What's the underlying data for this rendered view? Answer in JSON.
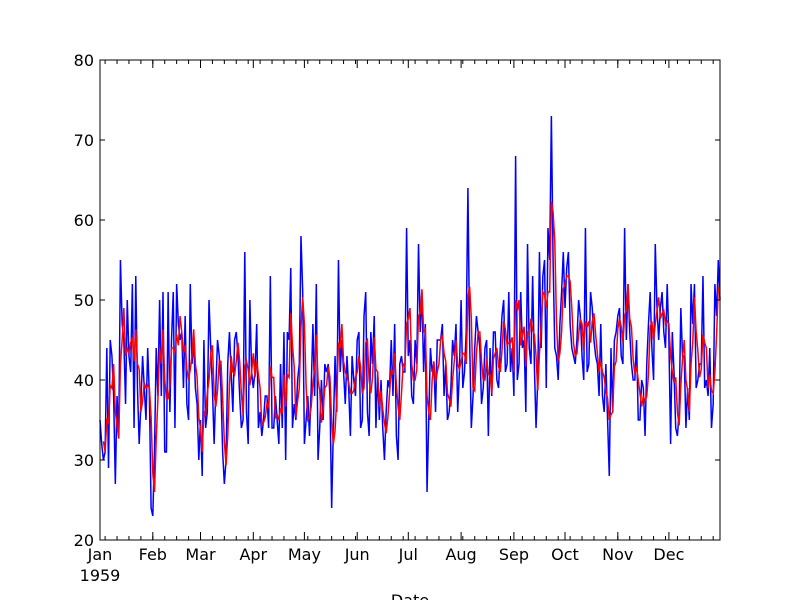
{
  "chart_data": {
    "type": "line",
    "title": "",
    "xlabel": "Date",
    "ylabel": "",
    "ylim": [
      20,
      80
    ],
    "yticks": [
      20,
      30,
      40,
      50,
      60,
      70,
      80
    ],
    "x_start": "1959-01-01",
    "x_end": "1959-12-31",
    "xticks": [
      "Jan",
      "Feb",
      "Mar",
      "Apr",
      "May",
      "Jun",
      "Jul",
      "Aug",
      "Sep",
      "Oct",
      "Nov",
      "Dec"
    ],
    "xtick_year": "1959",
    "grid": false,
    "colors": {
      "raw": "#0000ff",
      "smoothed": "#ff0000"
    },
    "series": [
      {
        "color": "#0000ff",
        "values": [
          35,
          32,
          30,
          31,
          44,
          29,
          45,
          43,
          38,
          27,
          38,
          33,
          55,
          47,
          45,
          37,
          50,
          43,
          41,
          52,
          34,
          53,
          39,
          32,
          37,
          43,
          39,
          35,
          44,
          38,
          24,
          23,
          31,
          44,
          38,
          50,
          38,
          51,
          31,
          31,
          51,
          36,
          45,
          51,
          34,
          52,
          47,
          45,
          46,
          39,
          48,
          37,
          35,
          52,
          42,
          45,
          39,
          37,
          30,
          35,
          28,
          45,
          34,
          36,
          50,
          44,
          39,
          32,
          39,
          45,
          43,
          39,
          31,
          27,
          30,
          42,
          46,
          41,
          36,
          45,
          46,
          43,
          38,
          34,
          35,
          56,
          36,
          32,
          50,
          41,
          39,
          41,
          47,
          34,
          36,
          33,
          35,
          38,
          38,
          34,
          53,
          34,
          34,
          38,
          35,
          32,
          42,
          34,
          46,
          30,
          46,
          45,
          54,
          34,
          37,
          35,
          40,
          42,
          58,
          51,
          32,
          35,
          38,
          33,
          39,
          47,
          38,
          52,
          30,
          34,
          40,
          35,
          42,
          41,
          42,
          38,
          24,
          34,
          43,
          36,
          55,
          41,
          45,
          41,
          37,
          43,
          39,
          33,
          43,
          40,
          38,
          45,
          46,
          34,
          35,
          48,
          51,
          36,
          33,
          46,
          42,
          48,
          34,
          41,
          35,
          40,
          34,
          30,
          36,
          40,
          39,
          45,
          38,
          47,
          33,
          30,
          42,
          43,
          41,
          41,
          59,
          43,
          45,
          38,
          37,
          45,
          42,
          57,
          46,
          51,
          41,
          47,
          26,
          35,
          44,
          41,
          42,
          36,
          45,
          45,
          45,
          47,
          38,
          42,
          35,
          36,
          39,
          45,
          43,
          47,
          36,
          41,
          50,
          39,
          41,
          46,
          64,
          45,
          34,
          38,
          44,
          48,
          46,
          44,
          37,
          39,
          44,
          45,
          33,
          44,
          38,
          46,
          46,
          40,
          39,
          44,
          48,
          50,
          41,
          42,
          51,
          41,
          44,
          38,
          68,
          40,
          42,
          51,
          44,
          45,
          36,
          57,
          44,
          42,
          53,
          42,
          34,
          40,
          56,
          44,
          53,
          55,
          39,
          59,
          55,
          73,
          55,
          44,
          43,
          40,
          47,
          51,
          56,
          49,
          54,
          56,
          47,
          44,
          43,
          42,
          45,
          50,
          48,
          43,
          40,
          59,
          41,
          42,
          51,
          49,
          45,
          43,
          42,
          38,
          47,
          38,
          36,
          42,
          35,
          28,
          44,
          36,
          45,
          46,
          48,
          49,
          43,
          42,
          59,
          45,
          52,
          46,
          42,
          40,
          40,
          45,
          35,
          35,
          40,
          39,
          33,
          42,
          47,
          51,
          44,
          40,
          57,
          49,
          45,
          49,
          51,
          46,
          44,
          52,
          45,
          32,
          46,
          41,
          34,
          33,
          36,
          49,
          43,
          43,
          34,
          39,
          35,
          52,
          47,
          52,
          39,
          40,
          42,
          42,
          53,
          39,
          40,
          38,
          44,
          34,
          37,
          52,
          48,
          55,
          50
        ]
      },
      {
        "color": "#ff0000",
        "rolling_mean_of": 0,
        "window": 3
      }
    ]
  }
}
